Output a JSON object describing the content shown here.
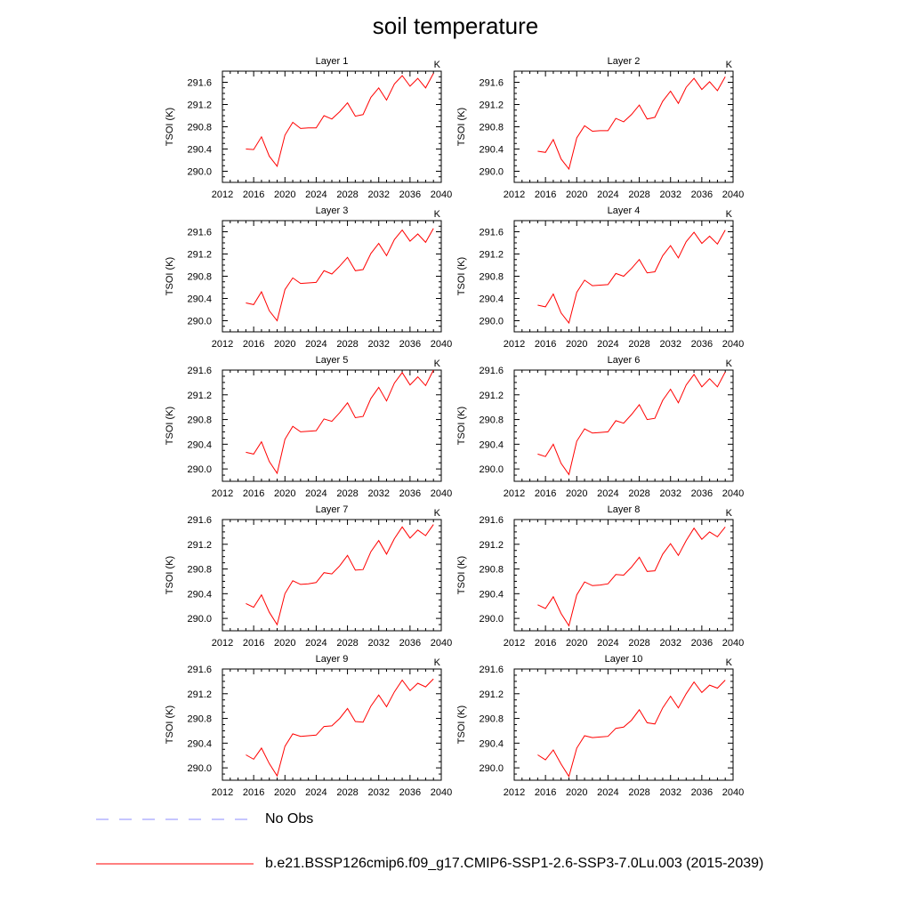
{
  "title": "soil temperature",
  "legend": {
    "items": [
      {
        "label": "No Obs",
        "color": "#8c8cff",
        "style": "dashed"
      },
      {
        "label": "b.e21.BSSP126cmip6.f09_g17.CMIP6-SSP1-2.6-SSP3-7.0Lu.003 (2015-2039)",
        "color": "#ff0000",
        "style": "solid"
      }
    ]
  },
  "chart_data": [
    {
      "type": "line",
      "panel": "Layer 1",
      "unit_label": "K",
      "ylabel": "TSOI  (K)",
      "xlim": [
        2012,
        2040
      ],
      "ylim": [
        289.8,
        291.8
      ],
      "xticks": [
        2012,
        2016,
        2020,
        2024,
        2028,
        2032,
        2036,
        2040
      ],
      "yticks": [
        "290.0",
        "290.4",
        "290.8",
        "291.2",
        "291.6"
      ],
      "series": [
        {
          "color": "#ff0000",
          "x": [
            2015,
            2016,
            2017,
            2018,
            2019,
            2020,
            2021,
            2022,
            2023,
            2024,
            2025,
            2026,
            2027,
            2028,
            2029,
            2030,
            2031,
            2032,
            2033,
            2034,
            2035,
            2036,
            2037,
            2038,
            2039
          ],
          "values": [
            290.4,
            290.39,
            290.62,
            290.27,
            290.09,
            290.65,
            290.88,
            290.77,
            290.78,
            290.78,
            291.0,
            290.94,
            291.07,
            291.23,
            290.99,
            291.02,
            291.33,
            291.5,
            291.28,
            291.57,
            291.72,
            291.53,
            291.67,
            291.5,
            291.76
          ]
        }
      ]
    },
    {
      "type": "line",
      "panel": "Layer 2",
      "unit_label": "K",
      "ylabel": "TSOI  (K)",
      "xlim": [
        2012,
        2040
      ],
      "ylim": [
        289.8,
        291.8
      ],
      "xticks": [
        2012,
        2016,
        2020,
        2024,
        2028,
        2032,
        2036,
        2040
      ],
      "yticks": [
        "290.0",
        "290.4",
        "290.8",
        "291.2",
        "291.6"
      ],
      "series": [
        {
          "color": "#ff0000",
          "x": [
            2015,
            2016,
            2017,
            2018,
            2019,
            2020,
            2021,
            2022,
            2023,
            2024,
            2025,
            2026,
            2027,
            2028,
            2029,
            2030,
            2031,
            2032,
            2033,
            2034,
            2035,
            2036,
            2037,
            2038,
            2039
          ],
          "values": [
            290.36,
            290.34,
            290.57,
            290.22,
            290.04,
            290.6,
            290.82,
            290.72,
            290.73,
            290.73,
            290.95,
            290.89,
            291.02,
            291.19,
            290.94,
            290.97,
            291.26,
            291.44,
            291.22,
            291.51,
            291.67,
            291.47,
            291.61,
            291.45,
            291.7
          ]
        }
      ]
    },
    {
      "type": "line",
      "panel": "Layer 3",
      "unit_label": "K",
      "ylabel": "TSOI  (K)",
      "xlim": [
        2012,
        2040
      ],
      "ylim": [
        289.8,
        291.8
      ],
      "xticks": [
        2012,
        2016,
        2020,
        2024,
        2028,
        2032,
        2036,
        2040
      ],
      "yticks": [
        "290.0",
        "290.4",
        "290.8",
        "291.2",
        "291.6"
      ],
      "series": [
        {
          "color": "#ff0000",
          "x": [
            2015,
            2016,
            2017,
            2018,
            2019,
            2020,
            2021,
            2022,
            2023,
            2024,
            2025,
            2026,
            2027,
            2028,
            2029,
            2030,
            2031,
            2032,
            2033,
            2034,
            2035,
            2036,
            2037,
            2038,
            2039
          ],
          "values": [
            290.32,
            290.29,
            290.52,
            290.18,
            290.0,
            290.56,
            290.77,
            290.67,
            290.68,
            290.69,
            290.9,
            290.84,
            290.98,
            291.14,
            290.9,
            290.92,
            291.21,
            291.39,
            291.17,
            291.46,
            291.63,
            291.43,
            291.56,
            291.41,
            291.66
          ]
        }
      ]
    },
    {
      "type": "line",
      "panel": "Layer 4",
      "unit_label": "K",
      "ylabel": "TSOI  (K)",
      "xlim": [
        2012,
        2040
      ],
      "ylim": [
        289.8,
        291.8
      ],
      "xticks": [
        2012,
        2016,
        2020,
        2024,
        2028,
        2032,
        2036,
        2040
      ],
      "yticks": [
        "290.0",
        "290.4",
        "290.8",
        "291.2",
        "291.6"
      ],
      "series": [
        {
          "color": "#ff0000",
          "x": [
            2015,
            2016,
            2017,
            2018,
            2019,
            2020,
            2021,
            2022,
            2023,
            2024,
            2025,
            2026,
            2027,
            2028,
            2029,
            2030,
            2031,
            2032,
            2033,
            2034,
            2035,
            2036,
            2037,
            2038,
            2039
          ],
          "values": [
            290.28,
            290.25,
            290.48,
            290.14,
            289.96,
            290.51,
            290.73,
            290.63,
            290.64,
            290.65,
            290.85,
            290.8,
            290.94,
            291.1,
            290.86,
            290.88,
            291.17,
            291.35,
            291.13,
            291.42,
            291.59,
            291.39,
            291.52,
            291.38,
            291.63
          ]
        }
      ]
    },
    {
      "type": "line",
      "panel": "Layer 5",
      "unit_label": "K",
      "ylabel": "TSOI  (K)",
      "xlim": [
        2012,
        2040
      ],
      "ylim": [
        289.8,
        291.6
      ],
      "xticks": [
        2012,
        2016,
        2020,
        2024,
        2028,
        2032,
        2036,
        2040
      ],
      "yticks": [
        "290.0",
        "290.4",
        "290.8",
        "291.2",
        "291.6"
      ],
      "series": [
        {
          "color": "#ff0000",
          "x": [
            2015,
            2016,
            2017,
            2018,
            2019,
            2020,
            2021,
            2022,
            2023,
            2024,
            2025,
            2026,
            2027,
            2028,
            2029,
            2030,
            2031,
            2032,
            2033,
            2034,
            2035,
            2036,
            2037,
            2038,
            2039
          ],
          "values": [
            290.27,
            290.24,
            290.44,
            290.12,
            289.93,
            290.48,
            290.69,
            290.6,
            290.61,
            290.62,
            290.81,
            290.77,
            290.91,
            291.07,
            290.83,
            290.85,
            291.14,
            291.32,
            291.1,
            291.39,
            291.56,
            291.36,
            291.49,
            291.35,
            291.6
          ]
        }
      ]
    },
    {
      "type": "line",
      "panel": "Layer 6",
      "unit_label": "K",
      "ylabel": "TSOI  (K)",
      "xlim": [
        2012,
        2040
      ],
      "ylim": [
        289.8,
        291.6
      ],
      "xticks": [
        2012,
        2016,
        2020,
        2024,
        2028,
        2032,
        2036,
        2040
      ],
      "yticks": [
        "290.0",
        "290.4",
        "290.8",
        "291.2",
        "291.6"
      ],
      "series": [
        {
          "color": "#ff0000",
          "x": [
            2015,
            2016,
            2017,
            2018,
            2019,
            2020,
            2021,
            2022,
            2023,
            2024,
            2025,
            2026,
            2027,
            2028,
            2029,
            2030,
            2031,
            2032,
            2033,
            2034,
            2035,
            2036,
            2037,
            2038,
            2039
          ],
          "values": [
            290.24,
            290.2,
            290.4,
            290.09,
            289.91,
            290.45,
            290.65,
            290.58,
            290.59,
            290.6,
            290.78,
            290.74,
            290.88,
            291.04,
            290.8,
            290.82,
            291.11,
            291.29,
            291.07,
            291.36,
            291.53,
            291.33,
            291.46,
            291.33,
            291.57
          ]
        }
      ]
    },
    {
      "type": "line",
      "panel": "Layer 7",
      "unit_label": "K",
      "ylabel": "TSOI  (K)",
      "xlim": [
        2012,
        2040
      ],
      "ylim": [
        289.8,
        291.6
      ],
      "xticks": [
        2012,
        2016,
        2020,
        2024,
        2028,
        2032,
        2036,
        2040
      ],
      "yticks": [
        "290.0",
        "290.4",
        "290.8",
        "291.2",
        "291.6"
      ],
      "series": [
        {
          "color": "#ff0000",
          "x": [
            2015,
            2016,
            2017,
            2018,
            2019,
            2020,
            2021,
            2022,
            2023,
            2024,
            2025,
            2026,
            2027,
            2028,
            2029,
            2030,
            2031,
            2032,
            2033,
            2034,
            2035,
            2036,
            2037,
            2038,
            2039
          ],
          "values": [
            290.24,
            290.18,
            290.38,
            290.1,
            289.9,
            290.4,
            290.61,
            290.55,
            290.56,
            290.58,
            290.74,
            290.72,
            290.85,
            291.02,
            290.78,
            290.79,
            291.08,
            291.26,
            291.04,
            291.29,
            291.48,
            291.3,
            291.43,
            291.34,
            291.52
          ]
        }
      ]
    },
    {
      "type": "line",
      "panel": "Layer 8",
      "unit_label": "K",
      "ylabel": "TSOI  (K)",
      "xlim": [
        2012,
        2040
      ],
      "ylim": [
        289.8,
        291.6
      ],
      "xticks": [
        2012,
        2016,
        2020,
        2024,
        2028,
        2032,
        2036,
        2040
      ],
      "yticks": [
        "290.0",
        "290.4",
        "290.8",
        "291.2",
        "291.6"
      ],
      "series": [
        {
          "color": "#ff0000",
          "x": [
            2015,
            2016,
            2017,
            2018,
            2019,
            2020,
            2021,
            2022,
            2023,
            2024,
            2025,
            2026,
            2027,
            2028,
            2029,
            2030,
            2031,
            2032,
            2033,
            2034,
            2035,
            2036,
            2037,
            2038,
            2039
          ],
          "values": [
            290.22,
            290.16,
            290.35,
            290.08,
            289.88,
            290.38,
            290.59,
            290.53,
            290.54,
            290.56,
            290.71,
            290.7,
            290.83,
            290.99,
            290.76,
            290.77,
            291.04,
            291.21,
            291.02,
            291.26,
            291.46,
            291.28,
            291.4,
            291.32,
            291.48
          ]
        }
      ]
    },
    {
      "type": "line",
      "panel": "Layer 9",
      "unit_label": "K",
      "ylabel": "TSOI  (K)",
      "xlim": [
        2012,
        2040
      ],
      "ylim": [
        289.8,
        291.6
      ],
      "xticks": [
        2012,
        2016,
        2020,
        2024,
        2028,
        2032,
        2036,
        2040
      ],
      "yticks": [
        "290.0",
        "290.4",
        "290.8",
        "291.2",
        "291.6"
      ],
      "series": [
        {
          "color": "#ff0000",
          "x": [
            2015,
            2016,
            2017,
            2018,
            2019,
            2020,
            2021,
            2022,
            2023,
            2024,
            2025,
            2026,
            2027,
            2028,
            2029,
            2030,
            2031,
            2032,
            2033,
            2034,
            2035,
            2036,
            2037,
            2038,
            2039
          ],
          "values": [
            290.21,
            290.14,
            290.32,
            290.07,
            289.87,
            290.35,
            290.55,
            290.51,
            290.52,
            290.53,
            290.67,
            290.68,
            290.8,
            290.96,
            290.75,
            290.74,
            291.0,
            291.18,
            290.99,
            291.23,
            291.42,
            291.25,
            291.37,
            291.31,
            291.44
          ]
        }
      ]
    },
    {
      "type": "line",
      "panel": "Layer 10",
      "unit_label": "K",
      "ylabel": "TSOI  (K)",
      "xlim": [
        2012,
        2040
      ],
      "ylim": [
        289.8,
        291.6
      ],
      "xticks": [
        2012,
        2016,
        2020,
        2024,
        2028,
        2032,
        2036,
        2040
      ],
      "yticks": [
        "290.0",
        "290.4",
        "290.8",
        "291.2",
        "291.6"
      ],
      "series": [
        {
          "color": "#ff0000",
          "x": [
            2015,
            2016,
            2017,
            2018,
            2019,
            2020,
            2021,
            2022,
            2023,
            2024,
            2025,
            2026,
            2027,
            2028,
            2029,
            2030,
            2031,
            2032,
            2033,
            2034,
            2035,
            2036,
            2037,
            2038,
            2039
          ],
          "values": [
            290.21,
            290.13,
            290.29,
            290.06,
            289.86,
            290.32,
            290.52,
            290.49,
            290.5,
            290.51,
            290.64,
            290.66,
            290.77,
            290.94,
            290.73,
            290.71,
            290.97,
            291.16,
            290.97,
            291.2,
            291.39,
            291.22,
            291.34,
            291.29,
            291.42
          ]
        }
      ]
    }
  ]
}
